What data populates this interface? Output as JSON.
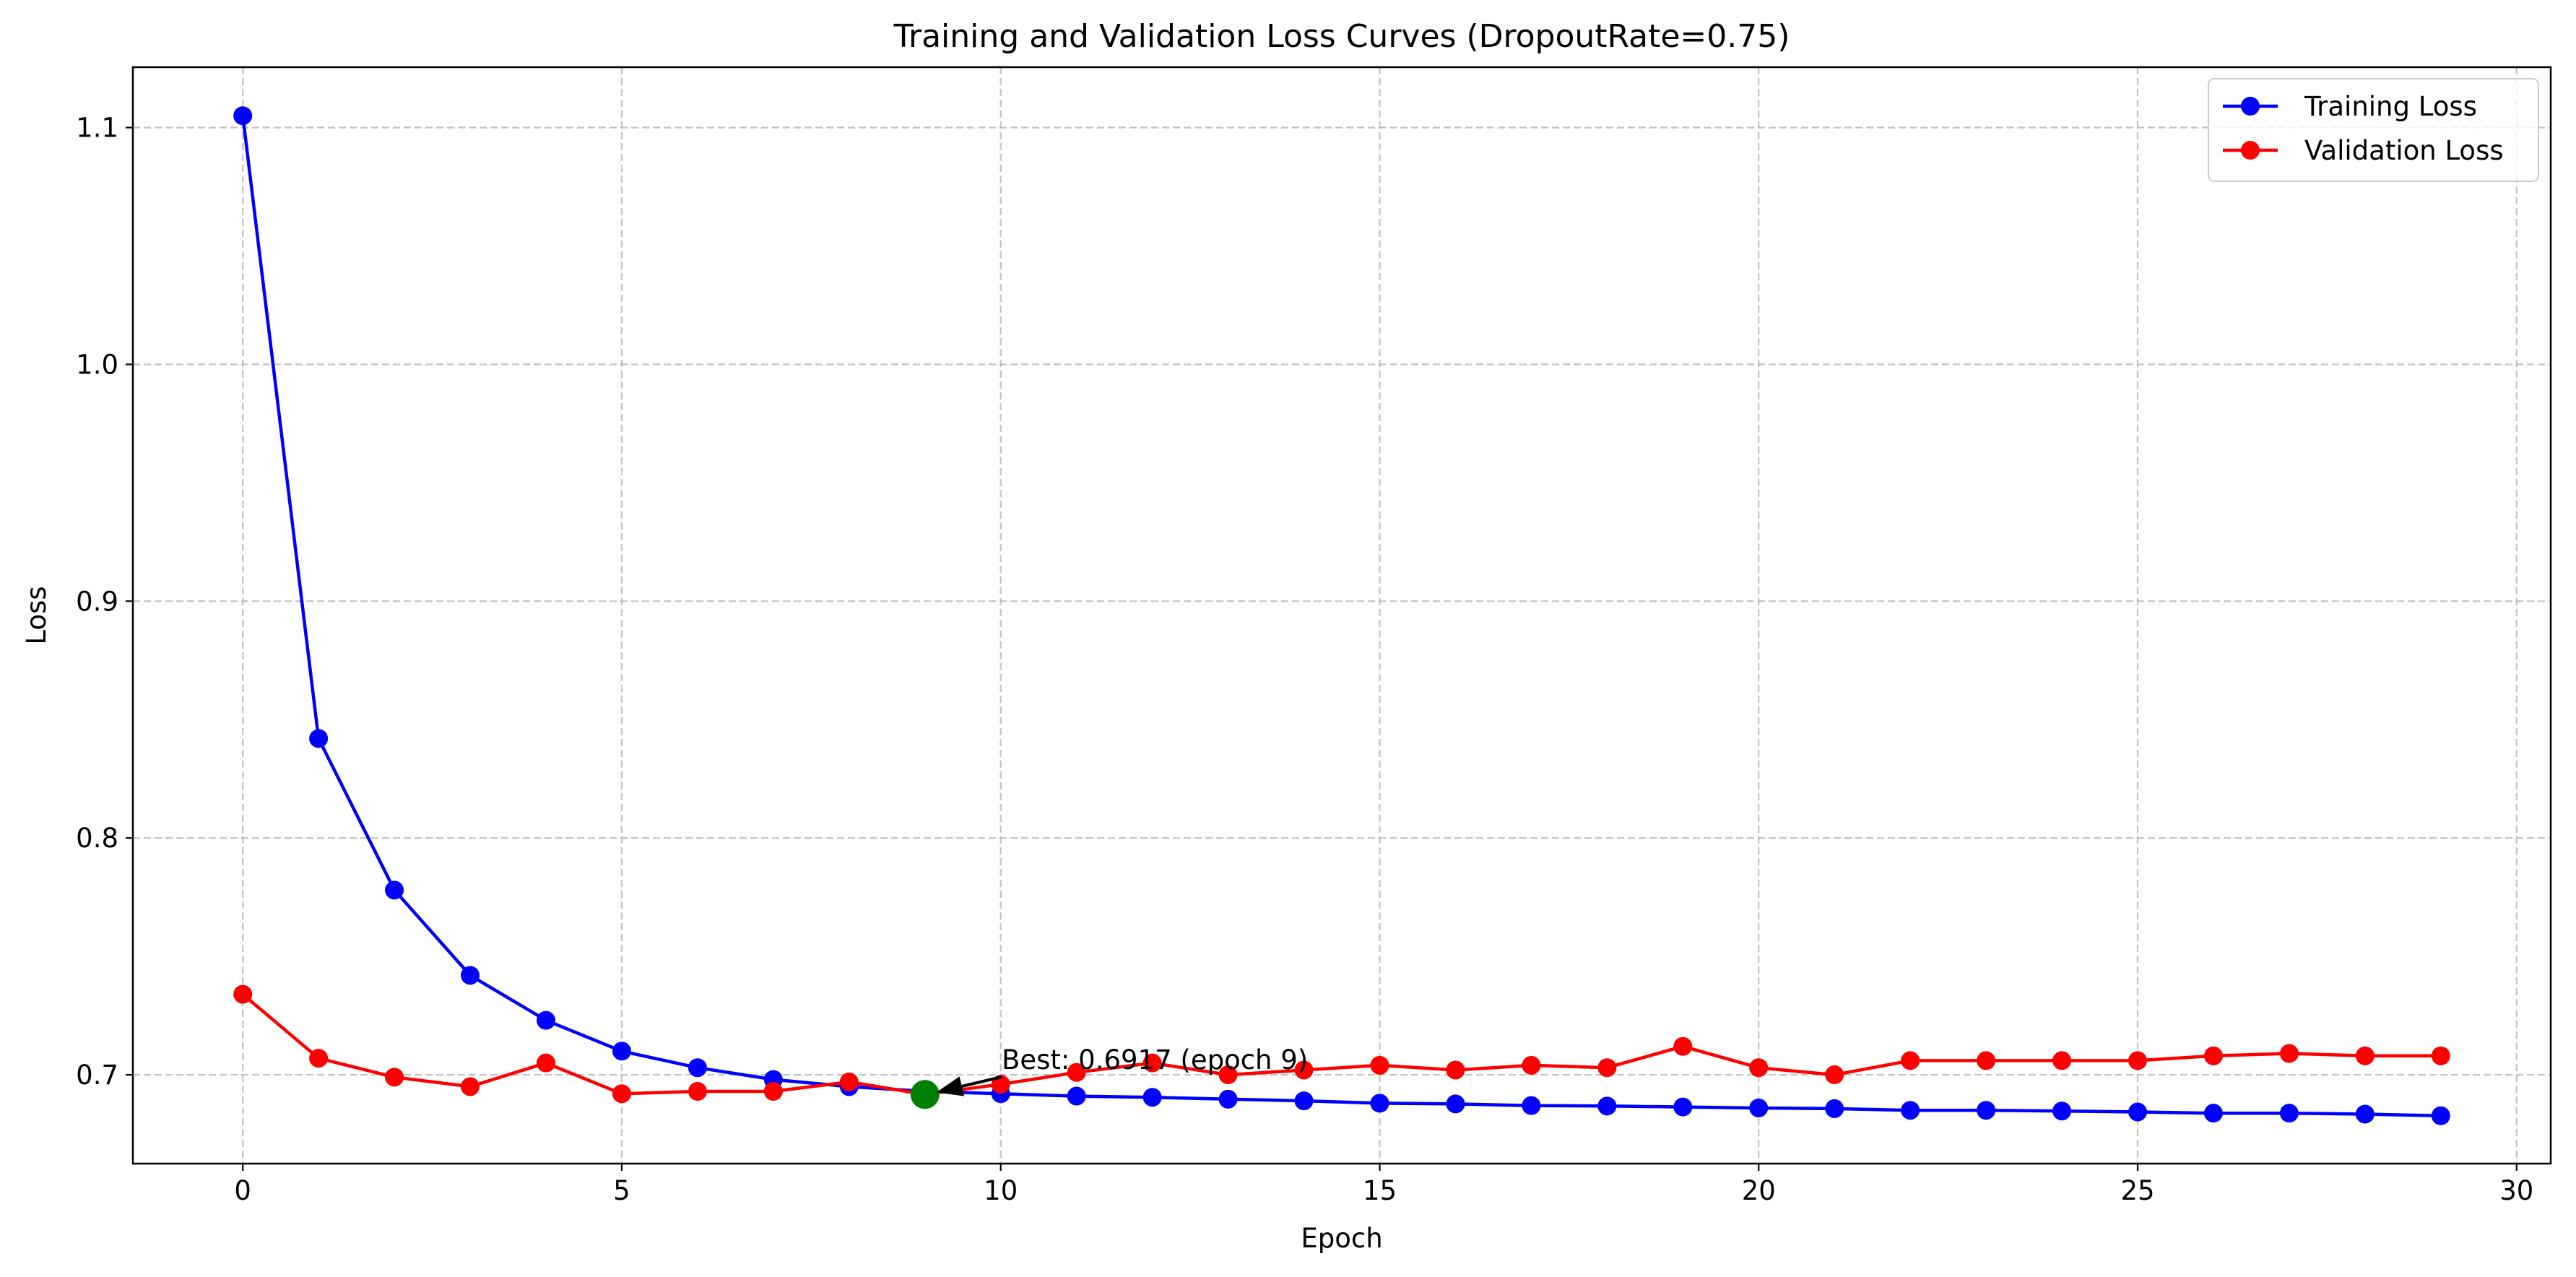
{
  "chart_data": {
    "type": "line",
    "title": "Training and Validation Loss Curves (DropoutRate=0.75)",
    "xlabel": "Epoch",
    "ylabel": "Loss",
    "xlim": [
      -1.45,
      30.45
    ],
    "ylim": [
      0.6625,
      1.1255
    ],
    "x_ticks": [
      0,
      5,
      10,
      15,
      20,
      25,
      30
    ],
    "y_ticks": [
      0.7,
      0.8,
      0.9,
      1.0,
      1.1
    ],
    "x_tick_labels": [
      "0",
      "5",
      "10",
      "15",
      "20",
      "25",
      "30"
    ],
    "y_tick_labels": [
      "0.7",
      "0.8",
      "0.9",
      "1.0",
      "1.1"
    ],
    "grid": true,
    "legend_position": "top-right",
    "x": [
      0,
      1,
      2,
      3,
      4,
      5,
      6,
      7,
      8,
      9,
      10,
      11,
      12,
      13,
      14,
      15,
      16,
      17,
      18,
      19,
      20,
      21,
      22,
      23,
      24,
      25,
      26,
      27,
      28,
      29
    ],
    "series": [
      {
        "name": "Training Loss",
        "color": "#0000ff",
        "values": [
          1.105,
          0.842,
          0.778,
          0.742,
          0.723,
          0.71,
          0.703,
          0.698,
          0.695,
          0.693,
          0.692,
          0.691,
          0.6905,
          0.6897,
          0.689,
          0.688,
          0.6877,
          0.687,
          0.6868,
          0.6864,
          0.686,
          0.6857,
          0.685,
          0.685,
          0.6847,
          0.6843,
          0.6838,
          0.6838,
          0.6834,
          0.6827
        ]
      },
      {
        "name": "Validation Loss",
        "color": "#ff0000",
        "values": [
          0.734,
          0.707,
          0.699,
          0.695,
          0.705,
          0.692,
          0.693,
          0.693,
          0.697,
          0.6917,
          0.696,
          0.701,
          0.705,
          0.7,
          0.702,
          0.704,
          0.702,
          0.704,
          0.703,
          0.712,
          0.703,
          0.7,
          0.706,
          0.706,
          0.706,
          0.706,
          0.708,
          0.709,
          0.708,
          0.708
        ]
      }
    ],
    "best_point": {
      "epoch": 9,
      "value": 0.6917,
      "color": "#008000",
      "label": "Best: 0.6917 (epoch 9)"
    }
  }
}
